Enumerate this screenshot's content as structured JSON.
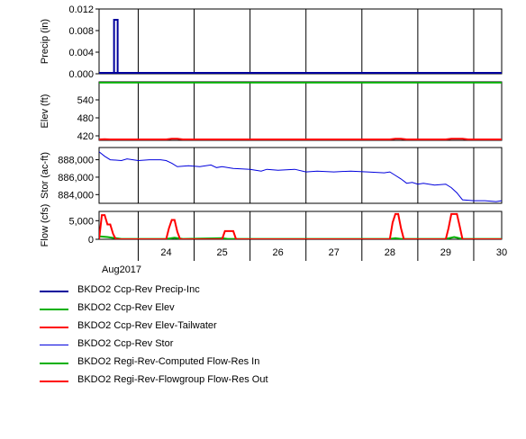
{
  "chart_data": {
    "type": "line",
    "x_axis": {
      "ticks": [
        "24",
        "25",
        "26",
        "27",
        "28",
        "29",
        "30"
      ],
      "label": "Aug2017",
      "start_day": 22.8,
      "end_day": 30.0
    },
    "panels": [
      {
        "ylabel": "Precip (in)",
        "yticks": [
          "0.000",
          "0.004",
          "0.008",
          "0.012"
        ],
        "ylim": [
          0,
          0.012
        ],
        "series": [
          {
            "name": "BKDO2 Ccp-Rev Precip-Inc",
            "color": "#00009c",
            "type": "bar",
            "points": [
              [
                23.1,
                0.01
              ]
            ]
          }
        ]
      },
      {
        "ylabel": "Elev (ft)",
        "yticks": [
          "420",
          "480",
          "540"
        ],
        "ylim": [
          405,
          600
        ],
        "series": [
          {
            "name": "BKDO2 Ccp-Rev Elev",
            "color": "#00b000",
            "points": [
              [
                22.8,
                598
              ],
              [
                30.0,
                598
              ]
            ]
          },
          {
            "name": "BKDO2 Ccp-Rev Elev-Tailwater",
            "color": "#ff0000",
            "points": [
              [
                22.8,
                408
              ],
              [
                22.9,
                409
              ],
              [
                23.0,
                408
              ],
              [
                24.0,
                408
              ],
              [
                24.1,
                410
              ],
              [
                24.2,
                410
              ],
              [
                24.3,
                408
              ],
              [
                28.0,
                408
              ],
              [
                28.1,
                410
              ],
              [
                28.2,
                410
              ],
              [
                28.3,
                408
              ],
              [
                29.0,
                408
              ],
              [
                29.1,
                410
              ],
              [
                29.3,
                410
              ],
              [
                29.4,
                408
              ],
              [
                30.0,
                408
              ]
            ]
          }
        ]
      },
      {
        "ylabel": "Stor (ac-ft)",
        "yticks": [
          "884,000",
          "886,000",
          "888,000"
        ],
        "ylim": [
          883000,
          889400
        ],
        "series": [
          {
            "name": "BKDO2 Ccp-Rev Stor",
            "color": "#0000dd",
            "points": [
              [
                22.8,
                888900
              ],
              [
                22.9,
                888400
              ],
              [
                23.0,
                888000
              ],
              [
                23.2,
                887900
              ],
              [
                23.3,
                888100
              ],
              [
                23.5,
                887900
              ],
              [
                23.7,
                888000
              ],
              [
                23.9,
                888000
              ],
              [
                24.0,
                887900
              ],
              [
                24.1,
                887600
              ],
              [
                24.2,
                887200
              ],
              [
                24.4,
                887300
              ],
              [
                24.6,
                887200
              ],
              [
                24.8,
                887400
              ],
              [
                24.9,
                887100
              ],
              [
                25.0,
                887200
              ],
              [
                25.2,
                887000
              ],
              [
                25.5,
                886900
              ],
              [
                25.7,
                886700
              ],
              [
                25.8,
                886900
              ],
              [
                26.0,
                886800
              ],
              [
                26.3,
                886900
              ],
              [
                26.5,
                886600
              ],
              [
                26.7,
                886700
              ],
              [
                27.0,
                886600
              ],
              [
                27.3,
                886700
              ],
              [
                27.6,
                886600
              ],
              [
                27.9,
                886500
              ],
              [
                28.0,
                886600
              ],
              [
                28.1,
                886200
              ],
              [
                28.2,
                885800
              ],
              [
                28.3,
                885300
              ],
              [
                28.4,
                885400
              ],
              [
                28.5,
                885200
              ],
              [
                28.6,
                885300
              ],
              [
                28.8,
                885100
              ],
              [
                29.0,
                885200
              ],
              [
                29.1,
                884800
              ],
              [
                29.2,
                884200
              ],
              [
                29.3,
                883400
              ],
              [
                29.5,
                883300
              ],
              [
                29.7,
                883300
              ],
              [
                29.9,
                883200
              ],
              [
                30.0,
                883300
              ]
            ]
          }
        ]
      },
      {
        "ylabel": "Flow (cfs)",
        "yticks": [
          "0",
          "5,000"
        ],
        "ylim": [
          0,
          7500
        ],
        "series": [
          {
            "name": "BKDO2 Regi-Rev-Computed Flow-Res In",
            "color": "#00b000",
            "points": [
              [
                22.8,
                800
              ],
              [
                22.95,
                600
              ],
              [
                23.1,
                300
              ],
              [
                23.2,
                100
              ],
              [
                24.0,
                100
              ],
              [
                24.15,
                400
              ],
              [
                24.3,
                100
              ],
              [
                25.0,
                300
              ],
              [
                25.1,
                100
              ],
              [
                28.0,
                100
              ],
              [
                28.1,
                300
              ],
              [
                28.2,
                100
              ],
              [
                29.0,
                100
              ],
              [
                29.15,
                600
              ],
              [
                29.3,
                100
              ],
              [
                30.0,
                100
              ]
            ]
          },
          {
            "name": "BKDO2 Regi-Rev-Flowgroup Flow-Res Out",
            "color": "#ff0000",
            "points": [
              [
                22.8,
                0
              ],
              [
                22.85,
                6500
              ],
              [
                22.9,
                6500
              ],
              [
                22.95,
                4000
              ],
              [
                23.0,
                4000
              ],
              [
                23.05,
                1500
              ],
              [
                23.1,
                0
              ],
              [
                24.0,
                0
              ],
              [
                24.05,
                3000
              ],
              [
                24.1,
                5200
              ],
              [
                24.15,
                5200
              ],
              [
                24.2,
                2000
              ],
              [
                24.25,
                0
              ],
              [
                25.0,
                0
              ],
              [
                25.05,
                2200
              ],
              [
                25.2,
                2200
              ],
              [
                25.25,
                0
              ],
              [
                28.0,
                0
              ],
              [
                28.05,
                4500
              ],
              [
                28.1,
                6800
              ],
              [
                28.15,
                6800
              ],
              [
                28.2,
                3000
              ],
              [
                28.25,
                0
              ],
              [
                29.0,
                0
              ],
              [
                29.05,
                3000
              ],
              [
                29.1,
                6800
              ],
              [
                29.2,
                6800
              ],
              [
                29.25,
                3500
              ],
              [
                29.3,
                0
              ],
              [
                30.0,
                0
              ]
            ]
          }
        ]
      }
    ],
    "legend": [
      {
        "label": "BKDO2 Ccp-Rev Precip-Inc",
        "color": "#00009c",
        "width": 2
      },
      {
        "label": "BKDO2 Ccp-Rev Elev",
        "color": "#00b000",
        "width": 2
      },
      {
        "label": "BKDO2 Ccp-Rev Elev-Tailwater",
        "color": "#ff0000",
        "width": 2
      },
      {
        "label": "BKDO2 Ccp-Rev Stor",
        "color": "#0000dd",
        "width": 1
      },
      {
        "label": "BKDO2 Regi-Rev-Computed Flow-Res In",
        "color": "#00b000",
        "width": 2
      },
      {
        "label": "BKDO2 Regi-Rev-Flowgroup Flow-Res Out",
        "color": "#ff0000",
        "width": 2
      }
    ]
  }
}
